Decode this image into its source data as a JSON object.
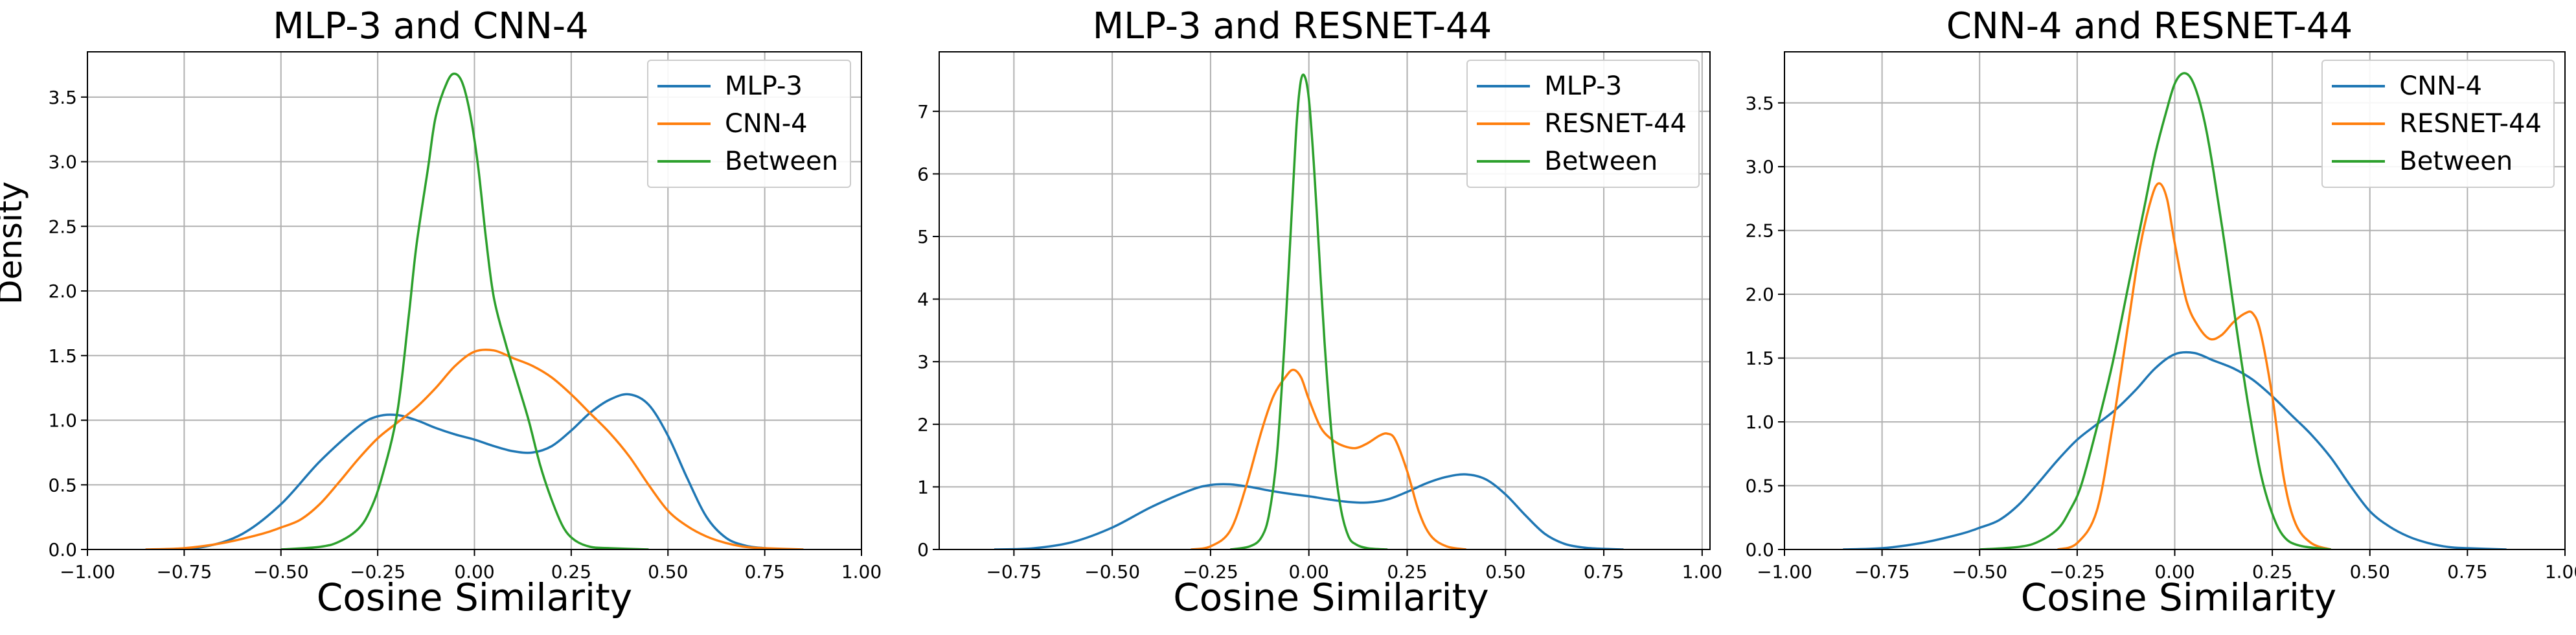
{
  "colors": {
    "blue": "#1f77b4",
    "orange": "#ff7f0e",
    "green": "#2ca02c",
    "grid": "#b0b0b0"
  },
  "chart_data": [
    {
      "type": "line",
      "title": "MLP-3 and CNN-4",
      "xlabel": "Cosine Similarity",
      "ylabel": "Density",
      "xlim": [
        -1.0,
        1.0
      ],
      "ylim": [
        0,
        3.85
      ],
      "xticks": [
        -1.0,
        -0.75,
        -0.5,
        -0.25,
        0.0,
        0.25,
        0.5,
        0.75,
        1.0
      ],
      "xtick_labels": [
        "−1.00",
        "−0.75",
        "−0.50",
        "−0.25",
        "0.00",
        "0.25",
        "0.50",
        "0.75",
        "1.00"
      ],
      "yticks": [
        0,
        0.5,
        1.0,
        1.5,
        2.0,
        2.5,
        3.0,
        3.5
      ],
      "ytick_labels": [
        "0.0",
        "0.5",
        "1.0",
        "1.5",
        "2.0",
        "2.5",
        "3.0",
        "3.5"
      ],
      "grid": true,
      "legend": "top-right",
      "series": [
        {
          "name": "MLP-3",
          "color": "#1f77b4",
          "x": [
            -0.8,
            -0.7,
            -0.6,
            -0.5,
            -0.4,
            -0.3,
            -0.25,
            -0.2,
            -0.15,
            -0.1,
            -0.05,
            0.0,
            0.05,
            0.1,
            0.15,
            0.2,
            0.25,
            0.3,
            0.35,
            0.4,
            0.45,
            0.5,
            0.55,
            0.6,
            0.65,
            0.7,
            0.75,
            0.8
          ],
          "y": [
            0.0,
            0.02,
            0.12,
            0.35,
            0.68,
            0.95,
            1.03,
            1.04,
            1.0,
            0.94,
            0.89,
            0.85,
            0.8,
            0.76,
            0.75,
            0.8,
            0.92,
            1.06,
            1.16,
            1.2,
            1.12,
            0.88,
            0.55,
            0.25,
            0.09,
            0.03,
            0.01,
            0.0
          ]
        },
        {
          "name": "CNN-4",
          "color": "#ff7f0e",
          "x": [
            -0.85,
            -0.75,
            -0.65,
            -0.55,
            -0.5,
            -0.45,
            -0.4,
            -0.35,
            -0.3,
            -0.25,
            -0.2,
            -0.15,
            -0.1,
            -0.05,
            0.0,
            0.05,
            0.1,
            0.15,
            0.2,
            0.25,
            0.3,
            0.35,
            0.4,
            0.45,
            0.5,
            0.55,
            0.6,
            0.65,
            0.7,
            0.75,
            0.85
          ],
          "y": [
            0.0,
            0.01,
            0.05,
            0.12,
            0.17,
            0.23,
            0.35,
            0.52,
            0.7,
            0.86,
            0.98,
            1.1,
            1.25,
            1.42,
            1.53,
            1.54,
            1.48,
            1.42,
            1.33,
            1.2,
            1.05,
            0.9,
            0.72,
            0.5,
            0.3,
            0.18,
            0.1,
            0.05,
            0.02,
            0.01,
            0.0
          ]
        },
        {
          "name": "Between",
          "color": "#2ca02c",
          "x": [
            -0.5,
            -0.4,
            -0.35,
            -0.3,
            -0.27,
            -0.24,
            -0.2,
            -0.17,
            -0.15,
            -0.12,
            -0.1,
            -0.07,
            -0.05,
            -0.03,
            -0.01,
            0.01,
            0.03,
            0.05,
            0.08,
            0.11,
            0.14,
            0.17,
            0.2,
            0.23,
            0.26,
            0.3,
            0.35,
            0.45
          ],
          "y": [
            0.0,
            0.02,
            0.06,
            0.16,
            0.3,
            0.55,
            1.05,
            1.8,
            2.35,
            2.95,
            3.35,
            3.62,
            3.68,
            3.6,
            3.35,
            2.95,
            2.4,
            1.95,
            1.6,
            1.3,
            1.0,
            0.65,
            0.38,
            0.17,
            0.07,
            0.02,
            0.01,
            0.0
          ]
        }
      ]
    },
    {
      "type": "line",
      "title": "MLP-3 and RESNET-44",
      "xlabel": "Cosine Similarity",
      "xlim": [
        -0.94,
        1.02
      ],
      "ylim": [
        0,
        7.95
      ],
      "xticks": [
        -0.75,
        -0.5,
        -0.25,
        0.0,
        0.25,
        0.5,
        0.75,
        1.0
      ],
      "xtick_labels": [
        "−0.75",
        "−0.50",
        "−0.25",
        "0.00",
        "0.25",
        "0.50",
        "0.75",
        "1.00"
      ],
      "yticks": [
        0,
        1,
        2,
        3,
        4,
        5,
        6,
        7
      ],
      "ytick_labels": [
        "0",
        "1",
        "2",
        "3",
        "4",
        "5",
        "6",
        "7"
      ],
      "grid": true,
      "legend": "top-right",
      "series": [
        {
          "name": "MLP-3",
          "color": "#1f77b4",
          "x": [
            -0.8,
            -0.7,
            -0.6,
            -0.5,
            -0.4,
            -0.3,
            -0.25,
            -0.2,
            -0.15,
            -0.1,
            -0.05,
            0.0,
            0.05,
            0.1,
            0.15,
            0.2,
            0.25,
            0.3,
            0.35,
            0.4,
            0.45,
            0.5,
            0.55,
            0.6,
            0.65,
            0.7,
            0.75,
            0.8
          ],
          "y": [
            0.0,
            0.02,
            0.12,
            0.35,
            0.68,
            0.95,
            1.03,
            1.04,
            1.0,
            0.94,
            0.89,
            0.85,
            0.8,
            0.76,
            0.75,
            0.8,
            0.92,
            1.06,
            1.16,
            1.2,
            1.12,
            0.88,
            0.55,
            0.25,
            0.09,
            0.03,
            0.01,
            0.0
          ]
        },
        {
          "name": "RESNET-44",
          "color": "#ff7f0e",
          "x": [
            -0.3,
            -0.25,
            -0.2,
            -0.16,
            -0.12,
            -0.09,
            -0.06,
            -0.04,
            -0.02,
            0.0,
            0.03,
            0.06,
            0.09,
            0.12,
            0.15,
            0.18,
            0.2,
            0.22,
            0.25,
            0.28,
            0.31,
            0.35,
            0.4
          ],
          "y": [
            0.0,
            0.05,
            0.3,
            1.0,
            1.9,
            2.45,
            2.75,
            2.87,
            2.75,
            2.4,
            1.95,
            1.75,
            1.65,
            1.62,
            1.7,
            1.82,
            1.85,
            1.75,
            1.25,
            0.6,
            0.22,
            0.05,
            0.0
          ]
        },
        {
          "name": "Between",
          "color": "#2ca02c",
          "x": [
            -0.2,
            -0.15,
            -0.12,
            -0.1,
            -0.08,
            -0.06,
            -0.04,
            -0.03,
            -0.02,
            -0.01,
            0.0,
            0.01,
            0.02,
            0.04,
            0.06,
            0.08,
            0.1,
            0.12,
            0.15,
            0.2
          ],
          "y": [
            0.0,
            0.05,
            0.2,
            0.6,
            1.6,
            3.5,
            5.8,
            6.9,
            7.5,
            7.55,
            7.2,
            6.4,
            5.4,
            3.3,
            1.7,
            0.7,
            0.22,
            0.08,
            0.02,
            0.0
          ]
        }
      ]
    },
    {
      "type": "line",
      "title": "CNN-4 and RESNET-44",
      "xlabel": "Cosine Similarity",
      "xlim": [
        -1.0,
        1.0
      ],
      "ylim": [
        0,
        3.9
      ],
      "xticks": [
        -1.0,
        -0.75,
        -0.5,
        -0.25,
        0.0,
        0.25,
        0.5,
        0.75,
        1.0
      ],
      "xtick_labels": [
        "−1.00",
        "−0.75",
        "−0.50",
        "−0.25",
        "0.00",
        "0.25",
        "0.50",
        "0.75",
        "1.00"
      ],
      "yticks": [
        0,
        0.5,
        1.0,
        1.5,
        2.0,
        2.5,
        3.0,
        3.5
      ],
      "ytick_labels": [
        "0.0",
        "0.5",
        "1.0",
        "1.5",
        "2.0",
        "2.5",
        "3.0",
        "3.5"
      ],
      "grid": true,
      "legend": "top-right",
      "series": [
        {
          "name": "CNN-4",
          "color": "#1f77b4",
          "x": [
            -0.85,
            -0.75,
            -0.65,
            -0.55,
            -0.5,
            -0.45,
            -0.4,
            -0.35,
            -0.3,
            -0.25,
            -0.2,
            -0.15,
            -0.1,
            -0.05,
            0.0,
            0.05,
            0.1,
            0.15,
            0.2,
            0.25,
            0.3,
            0.35,
            0.4,
            0.45,
            0.5,
            0.55,
            0.6,
            0.65,
            0.7,
            0.75,
            0.85
          ],
          "y": [
            0.0,
            0.01,
            0.05,
            0.12,
            0.17,
            0.23,
            0.35,
            0.52,
            0.7,
            0.86,
            0.98,
            1.1,
            1.25,
            1.42,
            1.53,
            1.54,
            1.48,
            1.42,
            1.33,
            1.2,
            1.05,
            0.9,
            0.72,
            0.5,
            0.3,
            0.18,
            0.1,
            0.05,
            0.02,
            0.01,
            0.0
          ]
        },
        {
          "name": "RESNET-44",
          "color": "#ff7f0e",
          "x": [
            -0.3,
            -0.25,
            -0.2,
            -0.16,
            -0.12,
            -0.09,
            -0.06,
            -0.04,
            -0.02,
            0.0,
            0.03,
            0.06,
            0.09,
            0.12,
            0.15,
            0.18,
            0.2,
            0.22,
            0.25,
            0.28,
            0.31,
            0.35,
            0.4
          ],
          "y": [
            0.0,
            0.05,
            0.3,
            0.95,
            1.75,
            2.35,
            2.75,
            2.87,
            2.75,
            2.4,
            1.95,
            1.75,
            1.65,
            1.68,
            1.78,
            1.85,
            1.85,
            1.7,
            1.2,
            0.55,
            0.2,
            0.05,
            0.0
          ]
        },
        {
          "name": "Between",
          "color": "#2ca02c",
          "x": [
            -0.5,
            -0.4,
            -0.35,
            -0.3,
            -0.27,
            -0.24,
            -0.2,
            -0.16,
            -0.12,
            -0.08,
            -0.05,
            -0.02,
            0.0,
            0.02,
            0.04,
            0.06,
            0.08,
            0.1,
            0.13,
            0.16,
            0.19,
            0.22,
            0.25,
            0.28,
            0.32,
            0.4
          ],
          "y": [
            0.0,
            0.02,
            0.06,
            0.16,
            0.3,
            0.5,
            0.95,
            1.45,
            2.05,
            2.65,
            3.1,
            3.45,
            3.65,
            3.73,
            3.7,
            3.55,
            3.3,
            2.95,
            2.35,
            1.7,
            1.1,
            0.6,
            0.28,
            0.1,
            0.03,
            0.0
          ]
        }
      ]
    }
  ]
}
